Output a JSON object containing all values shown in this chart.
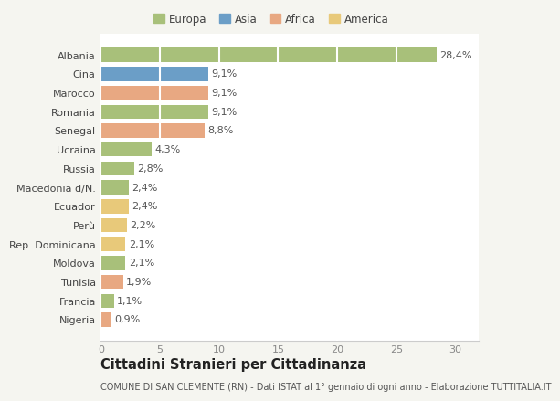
{
  "countries": [
    "Albania",
    "Cina",
    "Marocco",
    "Romania",
    "Senegal",
    "Ucraina",
    "Russia",
    "Macedonia d/N.",
    "Ecuador",
    "Perù",
    "Rep. Dominicana",
    "Moldova",
    "Tunisia",
    "Francia",
    "Nigeria"
  ],
  "values": [
    28.4,
    9.1,
    9.1,
    9.1,
    8.8,
    4.3,
    2.8,
    2.4,
    2.4,
    2.2,
    2.1,
    2.1,
    1.9,
    1.1,
    0.9
  ],
  "labels": [
    "28,4%",
    "9,1%",
    "9,1%",
    "9,1%",
    "8,8%",
    "4,3%",
    "2,8%",
    "2,4%",
    "2,4%",
    "2,2%",
    "2,1%",
    "2,1%",
    "1,9%",
    "1,1%",
    "0,9%"
  ],
  "colors": [
    "#a8c07a",
    "#6b9ec7",
    "#e8a882",
    "#a8c07a",
    "#e8a882",
    "#a8c07a",
    "#a8c07a",
    "#a8c07a",
    "#e8c97a",
    "#e8c97a",
    "#e8c97a",
    "#a8c07a",
    "#e8a882",
    "#a8c07a",
    "#e8a882"
  ],
  "legend_labels": [
    "Europa",
    "Asia",
    "Africa",
    "America"
  ],
  "legend_colors": [
    "#a8c07a",
    "#6b9ec7",
    "#e8a882",
    "#e8c97a"
  ],
  "xlim": [
    0,
    32
  ],
  "xticks": [
    0,
    5,
    10,
    15,
    20,
    25,
    30
  ],
  "title": "Cittadini Stranieri per Cittadinanza",
  "subtitle": "COMUNE DI SAN CLEMENTE (RN) - Dati ISTAT al 1° gennaio di ogni anno - Elaborazione TUTTITALIA.IT",
  "background_color": "#f5f5f0",
  "plot_bg_color": "#ffffff",
  "grid_color": "#ffffff",
  "bar_height": 0.75,
  "label_fontsize": 8,
  "tick_fontsize": 8,
  "title_fontsize": 10.5,
  "subtitle_fontsize": 7
}
